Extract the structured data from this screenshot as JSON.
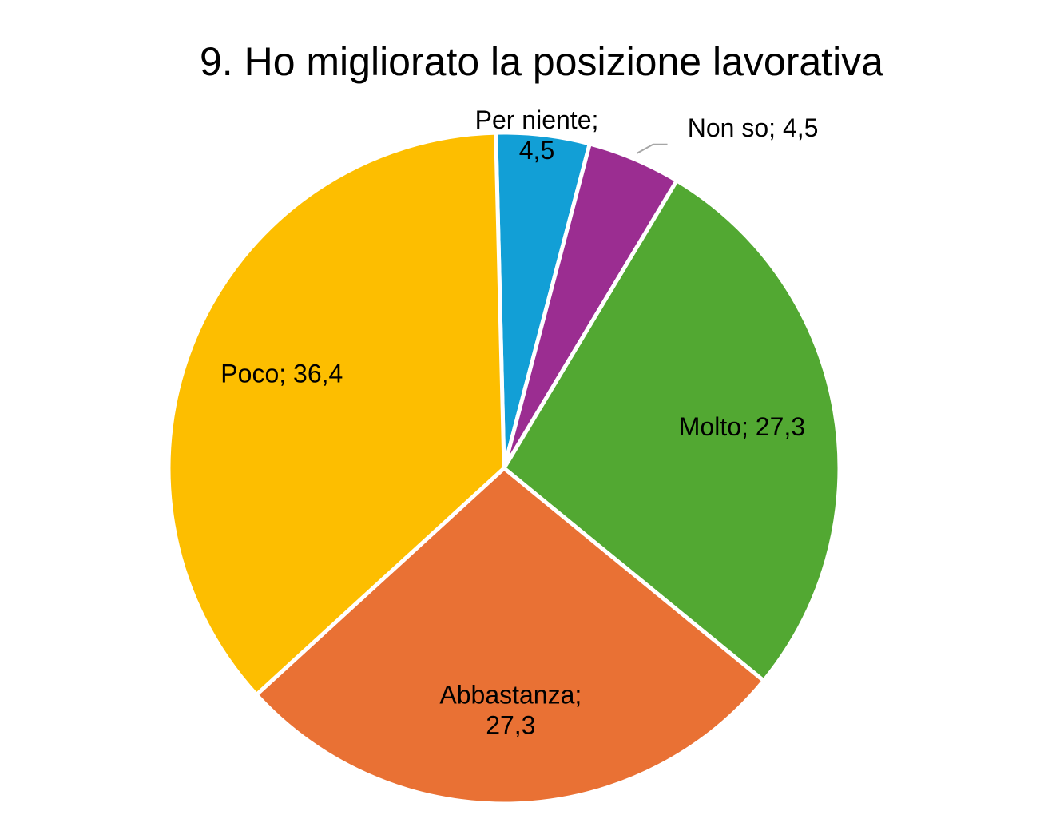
{
  "chart_data": {
    "type": "pie",
    "title": "9. Ho migliorato la posizione lavorativa",
    "slices": [
      {
        "category": "Per niente",
        "value": 4.5,
        "label_lines": [
          "Per niente;",
          "4,5"
        ],
        "color": "#129FD6"
      },
      {
        "category": "Non so",
        "value": 4.5,
        "label_lines": [
          "Non so; 4,5"
        ],
        "color": "#9B2D91"
      },
      {
        "category": "Molto",
        "value": 27.3,
        "label_lines": [
          "Molto; 27,3"
        ],
        "color": "#52A832"
      },
      {
        "category": "Abbastanza",
        "value": 27.3,
        "label_lines": [
          "Abbastanza;",
          "27,3"
        ],
        "color": "#E97134"
      },
      {
        "category": "Poco",
        "value": 36.4,
        "label_lines": [
          "Poco; 36,4"
        ],
        "color": "#FDBE00"
      }
    ],
    "legend": "none",
    "data_labels": "category; value"
  }
}
